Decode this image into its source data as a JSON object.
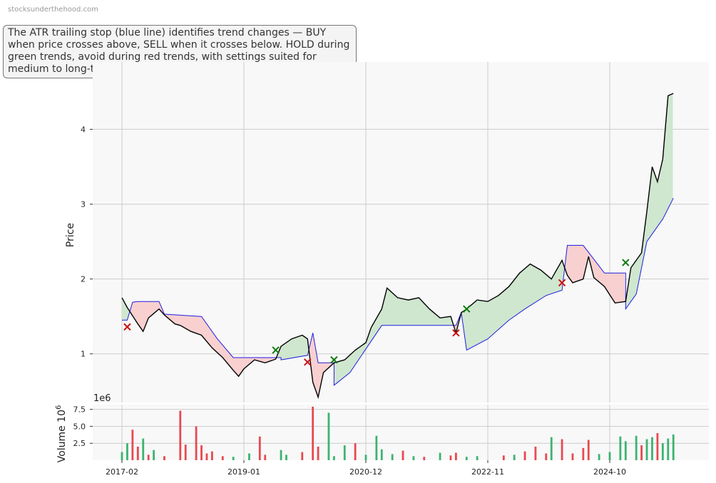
{
  "watermark": "stocksunderthehood.com",
  "annotation": "The ATR trailing stop (blue line) identifies trend changes — BUY when price crosses above, SELL when it crosses below. HOLD during green trends, avoid during red trends, with settings suited for medium to long-term investors.",
  "colors": {
    "price": "#000000",
    "stop": "#1f1fdd",
    "buy_fill": "#cfe6cf",
    "sell_fill": "#f8d0d0",
    "buy_marker": "#0a7a0a",
    "sell_marker": "#cc1111",
    "volume_up": "#3cb371",
    "volume_down": "#e8494f",
    "grid": "#cccccc",
    "panel_bg": "#f8f8f8"
  },
  "chart_data": [
    {
      "type": "line",
      "ylabel": "Price",
      "xlabel": "",
      "x_tick_labels": [
        "2017-02",
        "2019-01",
        "2020-12",
        "2022-11",
        "2024-10"
      ],
      "ylim": [
        0.35,
        4.9
      ],
      "y_ticks": [
        1,
        2,
        3,
        4
      ],
      "grid": true,
      "legend": "none",
      "series": [
        {
          "points": [
            [
              "2017-02",
              1.75
            ],
            [
              "2017-03",
              1.62
            ],
            [
              "2017-05",
              1.4
            ],
            [
              "2017-06",
              1.3
            ],
            [
              "2017-07",
              1.48
            ],
            [
              "2017-09",
              1.6
            ],
            [
              "2017-10",
              1.52
            ],
            [
              "2017-12",
              1.4
            ],
            [
              "2018-01",
              1.38
            ],
            [
              "2018-03",
              1.3
            ],
            [
              "2018-05",
              1.25
            ],
            [
              "2018-07",
              1.08
            ],
            [
              "2018-09",
              0.95
            ],
            [
              "2018-11",
              0.78
            ],
            [
              "2018-12",
              0.7
            ],
            [
              "2019-01",
              0.8
            ],
            [
              "2019-03",
              0.92
            ],
            [
              "2019-05",
              0.88
            ],
            [
              "2019-07",
              0.93
            ],
            [
              "2019-08",
              1.1
            ],
            [
              "2019-10",
              1.2
            ],
            [
              "2019-12",
              1.25
            ],
            [
              "2020-01",
              1.2
            ],
            [
              "2020-02",
              0.62
            ],
            [
              "2020-03",
              0.42
            ],
            [
              "2020-04",
              0.75
            ],
            [
              "2020-06",
              0.88
            ],
            [
              "2020-08",
              0.92
            ],
            [
              "2020-10",
              1.05
            ],
            [
              "2020-12",
              1.15
            ],
            [
              "2021-01",
              1.35
            ],
            [
              "2021-03",
              1.6
            ],
            [
              "2021-04",
              1.88
            ],
            [
              "2021-06",
              1.75
            ],
            [
              "2021-08",
              1.72
            ],
            [
              "2021-10",
              1.75
            ],
            [
              "2021-12",
              1.6
            ],
            [
              "2022-02",
              1.48
            ],
            [
              "2022-04",
              1.5
            ],
            [
              "2022-05",
              1.28
            ],
            [
              "2022-06",
              1.55
            ],
            [
              "2022-07",
              1.6
            ],
            [
              "2022-09",
              1.72
            ],
            [
              "2022-11",
              1.7
            ],
            [
              "2023-01",
              1.78
            ],
            [
              "2023-03",
              1.9
            ],
            [
              "2023-05",
              2.08
            ],
            [
              "2023-07",
              2.2
            ],
            [
              "2023-09",
              2.12
            ],
            [
              "2023-11",
              2.0
            ],
            [
              "2024-01",
              2.25
            ],
            [
              "2024-02",
              2.05
            ],
            [
              "2024-03",
              1.95
            ],
            [
              "2024-05",
              2.0
            ],
            [
              "2024-06",
              2.3
            ],
            [
              "2024-07",
              2.02
            ],
            [
              "2024-09",
              1.9
            ],
            [
              "2024-11",
              1.68
            ],
            [
              "2025-01",
              1.7
            ],
            [
              "2025-02",
              2.15
            ],
            [
              "2025-04",
              2.35
            ],
            [
              "2025-05",
              2.9
            ],
            [
              "2025-06",
              3.5
            ],
            [
              "2025-07",
              3.3
            ],
            [
              "2025-08",
              3.6
            ],
            [
              "2025-09",
              4.45
            ],
            [
              "2025-10",
              4.48
            ]
          ]
        },
        {
          "points": [
            [
              "2017-02",
              1.45
            ],
            [
              "2017-03",
              1.45
            ],
            [
              "2017-04",
              1.69
            ],
            [
              "2017-05",
              1.7
            ],
            [
              "2017-09",
              1.7
            ],
            [
              "2017-10",
              1.53
            ],
            [
              "2018-05",
              1.5
            ],
            [
              "2018-08",
              1.2
            ],
            [
              "2018-11",
              0.95
            ],
            [
              "2019-08",
              0.95
            ],
            [
              "2019-08",
              0.92
            ],
            [
              "2020-01",
              0.98
            ],
            [
              "2020-02",
              1.28
            ],
            [
              "2020-03",
              0.88
            ],
            [
              "2020-06",
              0.88
            ],
            [
              "2020-06",
              0.58
            ],
            [
              "2020-09",
              0.75
            ],
            [
              "2021-03",
              1.38
            ],
            [
              "2022-05",
              1.38
            ],
            [
              "2022-06",
              1.55
            ],
            [
              "2022-07",
              1.05
            ],
            [
              "2022-11",
              1.2
            ],
            [
              "2023-03",
              1.45
            ],
            [
              "2023-06",
              1.6
            ],
            [
              "2023-10",
              1.78
            ],
            [
              "2024-01",
              1.85
            ],
            [
              "2024-02",
              2.45
            ],
            [
              "2024-05",
              2.45
            ],
            [
              "2024-09",
              2.08
            ],
            [
              "2025-01",
              2.08
            ],
            [
              "2025-01",
              1.6
            ],
            [
              "2025-03",
              1.8
            ],
            [
              "2025-05",
              2.5
            ],
            [
              "2025-08",
              2.8
            ],
            [
              "2025-10",
              3.08
            ]
          ]
        }
      ],
      "markers": [
        {
          "signal": "SELL",
          "x": "2017-03",
          "y": 1.36
        },
        {
          "signal": "BUY",
          "x": "2019-07",
          "y": 1.05
        },
        {
          "signal": "SELL",
          "x": "2020-01",
          "y": 0.89
        },
        {
          "signal": "BUY",
          "x": "2020-06",
          "y": 0.92
        },
        {
          "signal": "SELL",
          "x": "2022-05",
          "y": 1.28
        },
        {
          "signal": "BUY",
          "x": "2022-07",
          "y": 1.6
        },
        {
          "signal": "SELL",
          "x": "2024-01",
          "y": 1.95
        },
        {
          "signal": "BUY",
          "x": "2025-01",
          "y": 2.22
        }
      ]
    },
    {
      "type": "bar",
      "ylabel": "Volume",
      "scale_label": "1e6",
      "scale_exponent": 6,
      "scale_base": "10",
      "ylim": [
        0,
        8.2
      ],
      "y_ticks": [
        2.5,
        5.0,
        7.5
      ],
      "y_tick_labels": [
        "2.5",
        "5.0",
        "7.5"
      ],
      "grid": true,
      "bars": [
        [
          "2017-02",
          1.2,
          "up"
        ],
        [
          "2017-03",
          2.5,
          "up"
        ],
        [
          "2017-04",
          4.5,
          "down"
        ],
        [
          "2017-05",
          2.0,
          "down"
        ],
        [
          "2017-06",
          3.2,
          "up"
        ],
        [
          "2017-07",
          0.8,
          "down"
        ],
        [
          "2017-08",
          1.5,
          "up"
        ],
        [
          "2017-10",
          0.6,
          "down"
        ],
        [
          "2018-01",
          7.3,
          "down"
        ],
        [
          "2018-02",
          2.3,
          "down"
        ],
        [
          "2018-04",
          5.0,
          "down"
        ],
        [
          "2018-05",
          2.2,
          "down"
        ],
        [
          "2018-06",
          1.0,
          "down"
        ],
        [
          "2018-07",
          1.3,
          "down"
        ],
        [
          "2018-09",
          0.6,
          "down"
        ],
        [
          "2018-11",
          0.5,
          "up"
        ],
        [
          "2019-02",
          1.0,
          "up"
        ],
        [
          "2019-04",
          3.5,
          "down"
        ],
        [
          "2019-05",
          0.8,
          "down"
        ],
        [
          "2019-08",
          1.5,
          "up"
        ],
        [
          "2019-09",
          0.8,
          "up"
        ],
        [
          "2019-12",
          1.2,
          "down"
        ],
        [
          "2020-02",
          7.9,
          "down"
        ],
        [
          "2020-03",
          2.0,
          "down"
        ],
        [
          "2020-05",
          7.0,
          "up"
        ],
        [
          "2020-06",
          0.6,
          "up"
        ],
        [
          "2020-08",
          2.2,
          "up"
        ],
        [
          "2020-10",
          2.5,
          "down"
        ],
        [
          "2020-12",
          0.8,
          "up"
        ],
        [
          "2021-02",
          3.6,
          "up"
        ],
        [
          "2021-03",
          1.6,
          "up"
        ],
        [
          "2021-05",
          0.9,
          "up"
        ],
        [
          "2021-07",
          1.4,
          "down"
        ],
        [
          "2021-09",
          0.6,
          "up"
        ],
        [
          "2021-11",
          0.5,
          "down"
        ],
        [
          "2022-02",
          1.1,
          "up"
        ],
        [
          "2022-04",
          0.7,
          "down"
        ],
        [
          "2022-05",
          1.1,
          "down"
        ],
        [
          "2022-07",
          0.5,
          "up"
        ],
        [
          "2022-09",
          0.6,
          "up"
        ],
        [
          "2023-02",
          0.7,
          "down"
        ],
        [
          "2023-04",
          0.8,
          "up"
        ],
        [
          "2023-06",
          1.3,
          "down"
        ],
        [
          "2023-08",
          2.0,
          "down"
        ],
        [
          "2023-10",
          1.0,
          "down"
        ],
        [
          "2023-11",
          3.4,
          "up"
        ],
        [
          "2024-01",
          3.1,
          "down"
        ],
        [
          "2024-03",
          1.0,
          "down"
        ],
        [
          "2024-05",
          1.8,
          "down"
        ],
        [
          "2024-06",
          3.0,
          "down"
        ],
        [
          "2024-08",
          0.9,
          "up"
        ],
        [
          "2024-10",
          1.2,
          "up"
        ],
        [
          "2024-12",
          3.5,
          "up"
        ],
        [
          "2025-01",
          2.8,
          "up"
        ],
        [
          "2025-03",
          3.6,
          "up"
        ],
        [
          "2025-04",
          2.2,
          "down"
        ],
        [
          "2025-05",
          3.1,
          "up"
        ],
        [
          "2025-06",
          3.4,
          "up"
        ],
        [
          "2025-07",
          4.0,
          "down"
        ],
        [
          "2025-08",
          2.5,
          "up"
        ],
        [
          "2025-09",
          3.2,
          "up"
        ],
        [
          "2025-10",
          3.8,
          "up"
        ]
      ]
    }
  ]
}
